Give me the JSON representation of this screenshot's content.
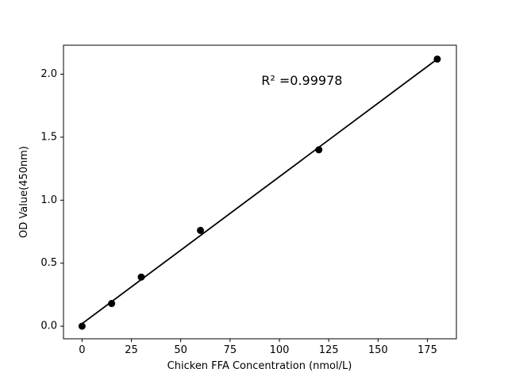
{
  "figure": {
    "background": "#ffffff"
  },
  "chart_data": {
    "type": "scatter",
    "title": "",
    "xlabel": "Chicken FFA Concentration (nmol/L)",
    "ylabel": "OD Value(450nm)",
    "annotation": {
      "text": "R² =0.99978",
      "x": 111.4,
      "y": 1.95
    },
    "points": {
      "x": [
        0,
        15,
        30,
        60,
        120,
        180
      ],
      "y": [
        0.0,
        0.18,
        0.39,
        0.76,
        1.4,
        2.12
      ]
    },
    "fit_line": {
      "x": [
        0,
        180
      ],
      "y": [
        0.02,
        2.12
      ]
    },
    "x_ticks": [
      0,
      25,
      50,
      75,
      100,
      125,
      150,
      175
    ],
    "x_tick_labels": [
      "0",
      "25",
      "50",
      "75",
      "100",
      "125",
      "150",
      "175"
    ],
    "y_ticks": [
      0.0,
      0.5,
      1.0,
      1.5,
      2.0
    ],
    "y_tick_labels": [
      "0.0",
      "0.5",
      "1.0",
      "1.5",
      "2.0"
    ],
    "xlim": [
      -9.4,
      189.7
    ],
    "ylim": [
      -0.1,
      2.23
    ],
    "grid": false,
    "legend": null,
    "colors": {
      "marker": "#000000",
      "line": "#000000",
      "text": "#000000",
      "axes": "#000000",
      "background": "#ffffff"
    }
  }
}
